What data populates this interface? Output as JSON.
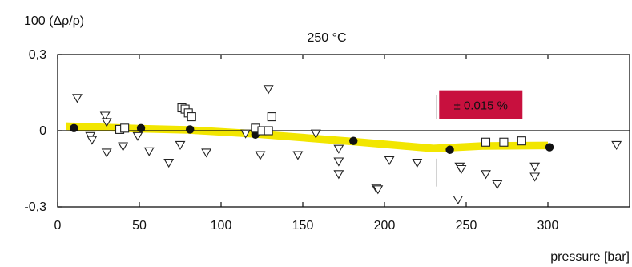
{
  "chart_data": {
    "type": "scatter",
    "ylabel": "100 (Δρ/ρ)",
    "title": "250 °C",
    "xlabel": "pressure [bar]",
    "xlim": [
      0,
      350
    ],
    "ylim": [
      -0.3,
      0.3
    ],
    "x_ticks": [
      {
        "value": 0,
        "label": "0"
      },
      {
        "value": 50,
        "label": "50"
      },
      {
        "value": 100,
        "label": "100"
      },
      {
        "value": 150,
        "label": "150"
      },
      {
        "value": 200,
        "label": "200"
      },
      {
        "value": 250,
        "label": "250"
      },
      {
        "value": 300,
        "label": "300"
      }
    ],
    "y_ticks": [
      {
        "value": 0.3,
        "label": "0,3"
      },
      {
        "value": 0,
        "label": "0"
      },
      {
        "value": -0.3,
        "label": "-0,3"
      }
    ],
    "annotation": {
      "text": "± 0.015 %",
      "x": 232,
      "y_low": -0.22,
      "y_high": 0.14,
      "color": "#c8103e"
    },
    "band": {
      "color": "#f2e600",
      "half_width": 0.015,
      "center": [
        [
          5,
          0.018
        ],
        [
          50,
          0.008
        ],
        [
          80,
          0.003
        ],
        [
          120,
          -0.012
        ],
        [
          180,
          -0.042
        ],
        [
          230,
          -0.07
        ],
        [
          260,
          -0.06
        ],
        [
          300,
          -0.058
        ]
      ]
    },
    "series": [
      {
        "marker": "circle-filled",
        "points": [
          [
            10,
            0.01
          ],
          [
            51,
            0.01
          ],
          [
            81,
            0.005
          ],
          [
            121,
            -0.015
          ],
          [
            181,
            -0.04
          ],
          [
            240,
            -0.075
          ],
          [
            301,
            -0.065
          ]
        ]
      },
      {
        "marker": "square-open",
        "points": [
          [
            38,
            0.005
          ],
          [
            41,
            0.01
          ],
          [
            76,
            0.09
          ],
          [
            78,
            0.085
          ],
          [
            80,
            0.07
          ],
          [
            82,
            0.055
          ],
          [
            121,
            0.01
          ],
          [
            125,
            0.0
          ],
          [
            129,
            0.0
          ],
          [
            131,
            0.055
          ],
          [
            262,
            -0.045
          ],
          [
            273,
            -0.045
          ],
          [
            284,
            -0.04
          ]
        ]
      },
      {
        "marker": "triangle-down-open",
        "points": [
          [
            12,
            0.13
          ],
          [
            20,
            -0.02
          ],
          [
            21,
            -0.035
          ],
          [
            29,
            0.06
          ],
          [
            30,
            0.035
          ],
          [
            30,
            -0.085
          ],
          [
            40,
            -0.06
          ],
          [
            49,
            -0.02
          ],
          [
            56,
            -0.08
          ],
          [
            68,
            -0.125
          ],
          [
            75,
            -0.055
          ],
          [
            91,
            -0.085
          ],
          [
            115,
            -0.01
          ],
          [
            124,
            -0.095
          ],
          [
            129,
            0.165
          ],
          [
            147,
            -0.095
          ],
          [
            158,
            -0.01
          ],
          [
            172,
            -0.07
          ],
          [
            172,
            -0.12
          ],
          [
            172,
            -0.17
          ],
          [
            195,
            -0.225
          ],
          [
            196,
            -0.23
          ],
          [
            203,
            -0.115
          ],
          [
            220,
            -0.125
          ],
          [
            246,
            -0.14
          ],
          [
            247,
            -0.15
          ],
          [
            245,
            -0.27
          ],
          [
            262,
            -0.17
          ],
          [
            269,
            -0.21
          ],
          [
            292,
            -0.14
          ],
          [
            292,
            -0.18
          ],
          [
            342,
            -0.055
          ]
        ]
      }
    ]
  }
}
